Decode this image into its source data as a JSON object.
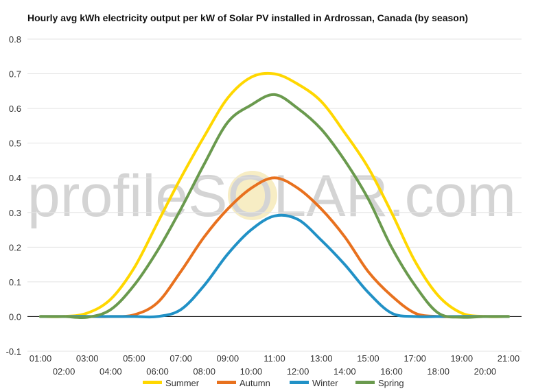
{
  "watermark": "profileSOLAR.com",
  "chart_data": {
    "type": "line",
    "title": "Hourly avg kWh electricity output per kW of Solar PV installed in Ardrossan, Canada (by season)",
    "xlabel": "",
    "ylabel": "",
    "ylim": [
      -0.1,
      0.8
    ],
    "yticks": [
      "-0.1",
      "0.0",
      "0.1",
      "0.2",
      "0.3",
      "0.4",
      "0.5",
      "0.6",
      "0.7",
      "0.8"
    ],
    "x": [
      "01:00",
      "02:00",
      "03:00",
      "04:00",
      "05:00",
      "06:00",
      "07:00",
      "08:00",
      "09:00",
      "10:00",
      "11:00",
      "12:00",
      "13:00",
      "14:00",
      "15:00",
      "16:00",
      "17:00",
      "18:00",
      "19:00",
      "20:00",
      "21:00"
    ],
    "grid": true,
    "legend_position": "bottom",
    "series": [
      {
        "name": "Summer",
        "color": "#FFD700",
        "values": [
          0.0,
          0.0,
          0.01,
          0.05,
          0.14,
          0.27,
          0.4,
          0.52,
          0.63,
          0.69,
          0.7,
          0.67,
          0.62,
          0.53,
          0.43,
          0.3,
          0.16,
          0.06,
          0.01,
          0.0,
          0.0
        ]
      },
      {
        "name": "Autumn",
        "color": "#E8711E",
        "values": [
          0.0,
          0.0,
          0.0,
          0.0,
          0.005,
          0.04,
          0.13,
          0.23,
          0.31,
          0.37,
          0.4,
          0.37,
          0.31,
          0.23,
          0.13,
          0.06,
          0.01,
          0.0,
          0.0,
          0.0,
          0.0
        ]
      },
      {
        "name": "Winter",
        "color": "#2191C6",
        "values": [
          0.0,
          0.0,
          0.0,
          0.0,
          0.0,
          0.0,
          0.02,
          0.09,
          0.18,
          0.25,
          0.29,
          0.28,
          0.22,
          0.15,
          0.07,
          0.01,
          0.0,
          0.0,
          0.0,
          0.0,
          0.0
        ]
      },
      {
        "name": "Spring",
        "color": "#6A9A4E",
        "values": [
          0.0,
          0.0,
          -0.002,
          0.02,
          0.09,
          0.19,
          0.31,
          0.44,
          0.56,
          0.61,
          0.64,
          0.6,
          0.54,
          0.45,
          0.34,
          0.2,
          0.09,
          0.01,
          -0.002,
          0.0,
          0.0
        ]
      }
    ]
  }
}
